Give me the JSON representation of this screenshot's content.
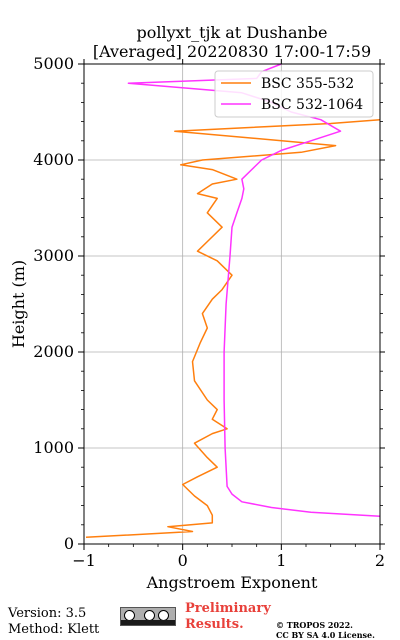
{
  "chart_data": {
    "type": "line",
    "title": "pollyxt_tjk at Dushanbe",
    "subtitle": "[Averaged] 20220830 17:00-17:59",
    "xlabel": "Angstroem Exponent",
    "ylabel": "Height (m)",
    "xlim": [
      -1,
      2
    ],
    "ylim": [
      0,
      5000
    ],
    "xticks": [
      -1,
      0,
      1,
      2
    ],
    "yticks": [
      0,
      1000,
      2000,
      3000,
      4000,
      5000
    ],
    "grid": true,
    "legend_position": "top-right",
    "series": [
      {
        "name": "BSC 355-532",
        "color": "#ff7f0e",
        "points": [
          [
            -0.98,
            70
          ],
          [
            0.1,
            130
          ],
          [
            -0.15,
            180
          ],
          [
            0.3,
            220
          ],
          [
            0.3,
            300
          ],
          [
            0.25,
            400
          ],
          [
            0.12,
            500
          ],
          [
            0.0,
            620
          ],
          [
            0.15,
            700
          ],
          [
            0.35,
            800
          ],
          [
            0.25,
            900
          ],
          [
            0.12,
            1050
          ],
          [
            0.3,
            1150
          ],
          [
            0.45,
            1200
          ],
          [
            0.3,
            1300
          ],
          [
            0.35,
            1400
          ],
          [
            0.25,
            1500
          ],
          [
            0.12,
            1700
          ],
          [
            0.1,
            1900
          ],
          [
            0.18,
            2100
          ],
          [
            0.25,
            2250
          ],
          [
            0.2,
            2400
          ],
          [
            0.3,
            2550
          ],
          [
            0.4,
            2650
          ],
          [
            0.5,
            2800
          ],
          [
            0.35,
            2950
          ],
          [
            0.15,
            3050
          ],
          [
            0.25,
            3150
          ],
          [
            0.4,
            3300
          ],
          [
            0.25,
            3450
          ],
          [
            0.35,
            3600
          ],
          [
            0.15,
            3650
          ],
          [
            0.3,
            3750
          ],
          [
            0.55,
            3800
          ],
          [
            0.3,
            3900
          ],
          [
            -0.02,
            3950
          ],
          [
            0.2,
            4000
          ],
          [
            1.2,
            4080
          ],
          [
            1.55,
            4150
          ],
          [
            -0.08,
            4300
          ],
          [
            1.5,
            4380
          ],
          [
            2.0,
            4420
          ]
        ]
      },
      {
        "name": "BSC 532-1064",
        "color": "#ff33ff",
        "points": [
          [
            2.0,
            290
          ],
          [
            1.3,
            330
          ],
          [
            0.9,
            380
          ],
          [
            0.6,
            440
          ],
          [
            0.5,
            520
          ],
          [
            0.45,
            600
          ],
          [
            0.44,
            800
          ],
          [
            0.43,
            1000
          ],
          [
            0.42,
            1500
          ],
          [
            0.42,
            2000
          ],
          [
            0.44,
            2500
          ],
          [
            0.48,
            3000
          ],
          [
            0.5,
            3300
          ],
          [
            0.55,
            3450
          ],
          [
            0.6,
            3600
          ],
          [
            0.62,
            3700
          ],
          [
            0.6,
            3800
          ],
          [
            0.7,
            3900
          ],
          [
            0.8,
            4000
          ],
          [
            1.0,
            4100
          ],
          [
            1.3,
            4200
          ],
          [
            1.6,
            4300
          ],
          [
            1.4,
            4420
          ],
          [
            1.1,
            4500
          ],
          [
            0.9,
            4600
          ],
          [
            0.6,
            4700
          ],
          [
            -0.55,
            4800
          ],
          [
            0.75,
            4850
          ],
          [
            0.8,
            4920
          ],
          [
            1.0,
            5000
          ]
        ]
      }
    ]
  },
  "footer": {
    "version": "Version: 3.5",
    "method": "Method: Klett",
    "preliminary_line1": "Preliminary",
    "preliminary_line2": "Results.",
    "copyright_line1": "© TROPOS 2022.",
    "copyright_line2": "CC BY SA 4.0 License."
  }
}
